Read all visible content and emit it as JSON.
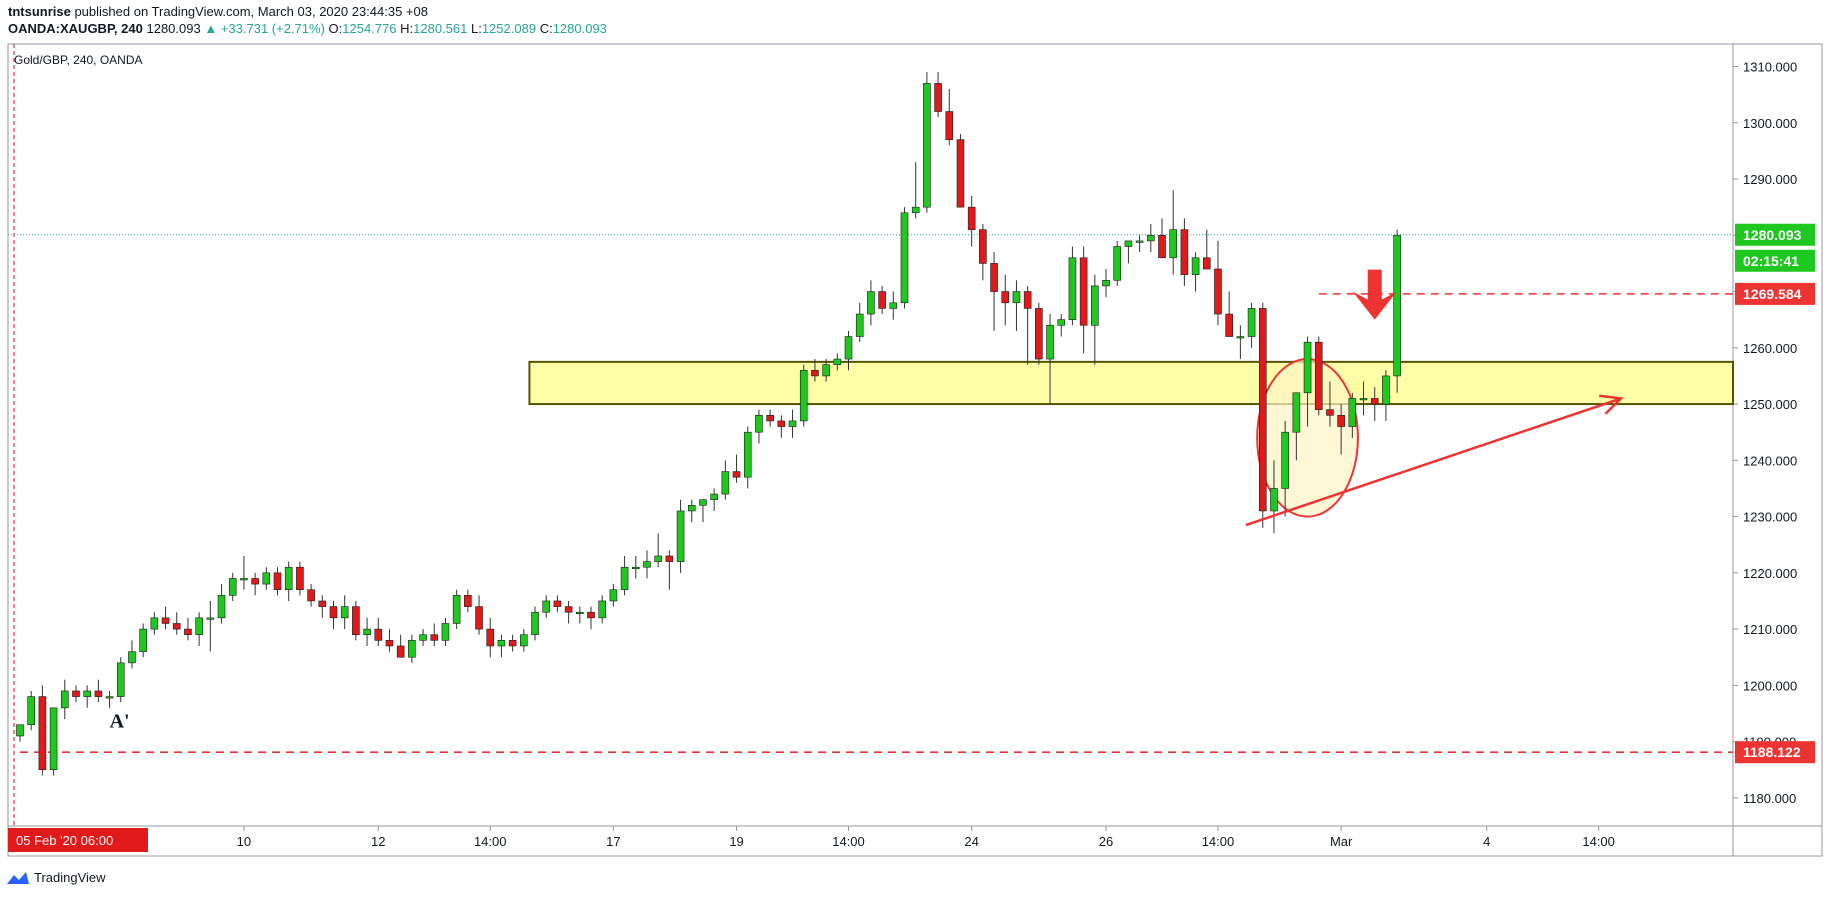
{
  "header": {
    "publisher": "tntsunrise",
    "published_text": " published on TradingView.com, March 03, 2020 23:44:35 +08",
    "symbol": "OANDA:XAUGBP, 240",
    "change": "▲ +33.731 (+2.71%)",
    "o_label": "O:",
    "o_value": "1254.776",
    "h_label": "H:",
    "h_value": "1280.561",
    "l_label": "L:",
    "l_value": "1252.089",
    "c_label": "C:",
    "c_value": "1280.093",
    "open_value": "1280.093"
  },
  "footer": {
    "brand": "TradingView"
  },
  "colors": {
    "up": "#1ec81e",
    "down": "#e01a1a",
    "wick": "#333333",
    "axis_text": "#131722",
    "zone_fill": "#ffff99",
    "zone_stroke": "#555500",
    "annotation": "#ee3333",
    "price_line": "#26a69a"
  },
  "chart_data": {
    "type": "candlestick",
    "title": "Gold/GBP, 240, OANDA",
    "ylim": [
      1175,
      1314
    ],
    "xlim": [
      0,
      153
    ],
    "y_ticks": [
      1180,
      1190,
      1200,
      1210,
      1220,
      1230,
      1240,
      1250,
      1260,
      1270,
      1280,
      1290,
      1300,
      1310
    ],
    "y_tick_labels": [
      "1180.000",
      "1190.000",
      "1200.000",
      "1210.000",
      "1220.000",
      "1230.000",
      "1240.000",
      "1250.000",
      "1260.000",
      "1270.000",
      "1280.000",
      "1290.000",
      "1300.000",
      "1310.000"
    ],
    "x_ticks": [
      {
        "label": "05 Feb '20   06:00",
        "bar": 0,
        "highlight": true
      },
      {
        "label": "10",
        "bar": 20
      },
      {
        "label": "12",
        "bar": 32
      },
      {
        "label": "14:00",
        "bar": 42
      },
      {
        "label": "17",
        "bar": 53
      },
      {
        "label": "19",
        "bar": 64
      },
      {
        "label": "14:00",
        "bar": 74
      },
      {
        "label": "24",
        "bar": 85
      },
      {
        "label": "26",
        "bar": 97
      },
      {
        "label": "14:00",
        "bar": 107
      },
      {
        "label": "Mar",
        "bar": 118
      },
      {
        "label": "4",
        "bar": 131
      },
      {
        "label": "14:00",
        "bar": 141
      }
    ],
    "price_labels": [
      {
        "value": 1280.093,
        "text": "1280.093",
        "style": "current"
      },
      {
        "text": "02:15:41",
        "style": "countdown"
      },
      {
        "value": 1269.584,
        "text": "1269.584",
        "style": "level"
      },
      {
        "value": 1188.122,
        "text": "1188.122",
        "style": "level"
      }
    ],
    "horizontal_lines": [
      {
        "value": 1188.122,
        "style": "dashed",
        "start_bar": 0
      },
      {
        "value": 1269.584,
        "style": "dashed",
        "start_bar": 116
      },
      {
        "value": 1280.093,
        "style": "dotted",
        "start_bar": 0
      }
    ],
    "zone": {
      "from": 1250.0,
      "to": 1257.5,
      "start_bar": 45.5
    },
    "trendline": {
      "x1": 109.5,
      "y1": 1228.5,
      "x2": 143,
      "y2": 1251
    },
    "ellipse": {
      "cx": 115,
      "cy": 1244,
      "rx": 4.5,
      "ry": 14
    },
    "arrow_marker": {
      "bar": 121,
      "value": 1265
    },
    "annotations": [
      {
        "text": "A'",
        "bar": 8,
        "value": 1192.5
      }
    ],
    "candles": [
      [
        1191,
        1193,
        1190,
        1193
      ],
      [
        1193,
        1199,
        1192,
        1198
      ],
      [
        1198,
        1200,
        1184,
        1185
      ],
      [
        1185,
        1196,
        1184,
        1196
      ],
      [
        1196,
        1201,
        1194,
        1199
      ],
      [
        1199,
        1200,
        1197,
        1198
      ],
      [
        1198,
        1200,
        1196,
        1199
      ],
      [
        1199,
        1201,
        1197,
        1198
      ],
      [
        1198,
        1199,
        1196,
        1198
      ],
      [
        1198,
        1205,
        1197,
        1204
      ],
      [
        1204,
        1208,
        1203,
        1206
      ],
      [
        1206,
        1211,
        1205,
        1210
      ],
      [
        1210,
        1213,
        1209,
        1212
      ],
      [
        1212,
        1214,
        1210,
        1211
      ],
      [
        1211,
        1213,
        1209,
        1210
      ],
      [
        1210,
        1212,
        1208,
        1209
      ],
      [
        1209,
        1213,
        1207,
        1212
      ],
      [
        1212,
        1215,
        1206,
        1212
      ],
      [
        1212,
        1218,
        1211,
        1216
      ],
      [
        1216,
        1220,
        1215,
        1219
      ],
      [
        1219,
        1223,
        1217,
        1219
      ],
      [
        1219,
        1220,
        1216,
        1218
      ],
      [
        1218,
        1221,
        1217,
        1220
      ],
      [
        1220,
        1221,
        1216,
        1217
      ],
      [
        1217,
        1222,
        1215,
        1221
      ],
      [
        1221,
        1222,
        1216,
        1217
      ],
      [
        1217,
        1218,
        1214,
        1215
      ],
      [
        1215,
        1216,
        1212,
        1214
      ],
      [
        1214,
        1215,
        1210,
        1212
      ],
      [
        1212,
        1216,
        1210,
        1214
      ],
      [
        1214,
        1215,
        1208,
        1209
      ],
      [
        1209,
        1212,
        1207,
        1210
      ],
      [
        1210,
        1212,
        1207,
        1208
      ],
      [
        1208,
        1210,
        1206,
        1207
      ],
      [
        1207,
        1209,
        1205,
        1205
      ],
      [
        1205,
        1209,
        1204,
        1208
      ],
      [
        1208,
        1210,
        1207,
        1209
      ],
      [
        1209,
        1211,
        1207,
        1208
      ],
      [
        1208,
        1212,
        1207,
        1211
      ],
      [
        1211,
        1217,
        1210,
        1216
      ],
      [
        1216,
        1217,
        1213,
        1214
      ],
      [
        1214,
        1216,
        1209,
        1210
      ],
      [
        1210,
        1212,
        1205,
        1207
      ],
      [
        1207,
        1209,
        1205,
        1208
      ],
      [
        1208,
        1209,
        1206,
        1207
      ],
      [
        1207,
        1210,
        1206,
        1209
      ],
      [
        1209,
        1214,
        1208,
        1213
      ],
      [
        1213,
        1216,
        1212,
        1215
      ],
      [
        1215,
        1216,
        1213,
        1214
      ],
      [
        1214,
        1215,
        1211,
        1213
      ],
      [
        1213,
        1214,
        1211,
        1213
      ],
      [
        1213,
        1214,
        1210,
        1212
      ],
      [
        1212,
        1216,
        1211,
        1215
      ],
      [
        1215,
        1218,
        1214,
        1217
      ],
      [
        1217,
        1223,
        1216,
        1221
      ],
      [
        1221,
        1223,
        1219,
        1221
      ],
      [
        1221,
        1224,
        1219,
        1222
      ],
      [
        1222,
        1227,
        1221,
        1223
      ],
      [
        1223,
        1224,
        1217,
        1222
      ],
      [
        1222,
        1233,
        1220,
        1231
      ],
      [
        1231,
        1233,
        1229,
        1232
      ],
      [
        1232,
        1233,
        1229,
        1233
      ],
      [
        1233,
        1235,
        1231,
        1234
      ],
      [
        1234,
        1240,
        1233,
        1238
      ],
      [
        1238,
        1241,
        1236,
        1237
      ],
      [
        1237,
        1246,
        1235,
        1245
      ],
      [
        1245,
        1249,
        1243,
        1248
      ],
      [
        1248,
        1249,
        1246,
        1247
      ],
      [
        1247,
        1248,
        1244,
        1246
      ],
      [
        1246,
        1249,
        1244,
        1247
      ],
      [
        1247,
        1257,
        1246,
        1256
      ],
      [
        1256,
        1258,
        1254,
        1255
      ],
      [
        1255,
        1258,
        1254,
        1257
      ],
      [
        1257,
        1259,
        1256,
        1258
      ],
      [
        1258,
        1263,
        1256,
        1262
      ],
      [
        1262,
        1268,
        1261,
        1266
      ],
      [
        1266,
        1272,
        1264,
        1270
      ],
      [
        1270,
        1271,
        1266,
        1267
      ],
      [
        1267,
        1270,
        1265,
        1268
      ],
      [
        1268,
        1285,
        1267,
        1284
      ],
      [
        1284,
        1293,
        1283,
        1285
      ],
      [
        1285,
        1309,
        1284,
        1307
      ],
      [
        1307,
        1309,
        1301,
        1302
      ],
      [
        1302,
        1306,
        1296,
        1297
      ],
      [
        1297,
        1298,
        1285,
        1285
      ],
      [
        1285,
        1287,
        1278,
        1281
      ],
      [
        1281,
        1282,
        1272,
        1275
      ],
      [
        1275,
        1277,
        1263,
        1270
      ],
      [
        1270,
        1273,
        1264,
        1268
      ],
      [
        1268,
        1272,
        1263,
        1270
      ],
      [
        1270,
        1271,
        1257,
        1267
      ],
      [
        1267,
        1268,
        1257,
        1258
      ],
      [
        1258,
        1266,
        1250,
        1264
      ],
      [
        1264,
        1266,
        1262,
        1265
      ],
      [
        1265,
        1278,
        1264,
        1276
      ],
      [
        1276,
        1278,
        1259,
        1264
      ],
      [
        1264,
        1273,
        1257,
        1271
      ],
      [
        1271,
        1274,
        1269,
        1272
      ],
      [
        1272,
        1279,
        1271,
        1278
      ],
      [
        1278,
        1279,
        1275,
        1279
      ],
      [
        1279,
        1280,
        1277,
        1279
      ],
      [
        1279,
        1282,
        1277,
        1280
      ],
      [
        1280,
        1283,
        1276,
        1276
      ],
      [
        1276,
        1288,
        1273,
        1281
      ],
      [
        1281,
        1283,
        1271,
        1273
      ],
      [
        1273,
        1277,
        1270,
        1276
      ],
      [
        1276,
        1281,
        1274,
        1274
      ],
      [
        1274,
        1279,
        1264,
        1266
      ],
      [
        1266,
        1270,
        1263,
        1262
      ],
      [
        1262,
        1264,
        1258,
        1262
      ],
      [
        1262,
        1268,
        1260,
        1267
      ],
      [
        1267,
        1268,
        1228,
        1231
      ],
      [
        1231,
        1240,
        1227,
        1235
      ],
      [
        1235,
        1247,
        1230,
        1245
      ],
      [
        1245,
        1251,
        1240,
        1252
      ],
      [
        1252,
        1262,
        1246,
        1261
      ],
      [
        1261,
        1262,
        1248,
        1249
      ],
      [
        1249,
        1254,
        1246,
        1248
      ],
      [
        1248,
        1250,
        1241,
        1246
      ],
      [
        1246,
        1252,
        1244,
        1251
      ],
      [
        1251,
        1254,
        1248,
        1251
      ],
      [
        1251,
        1253,
        1247,
        1250
      ],
      [
        1250,
        1256,
        1247,
        1255
      ],
      [
        1255,
        1281,
        1252,
        1280
      ]
    ]
  }
}
